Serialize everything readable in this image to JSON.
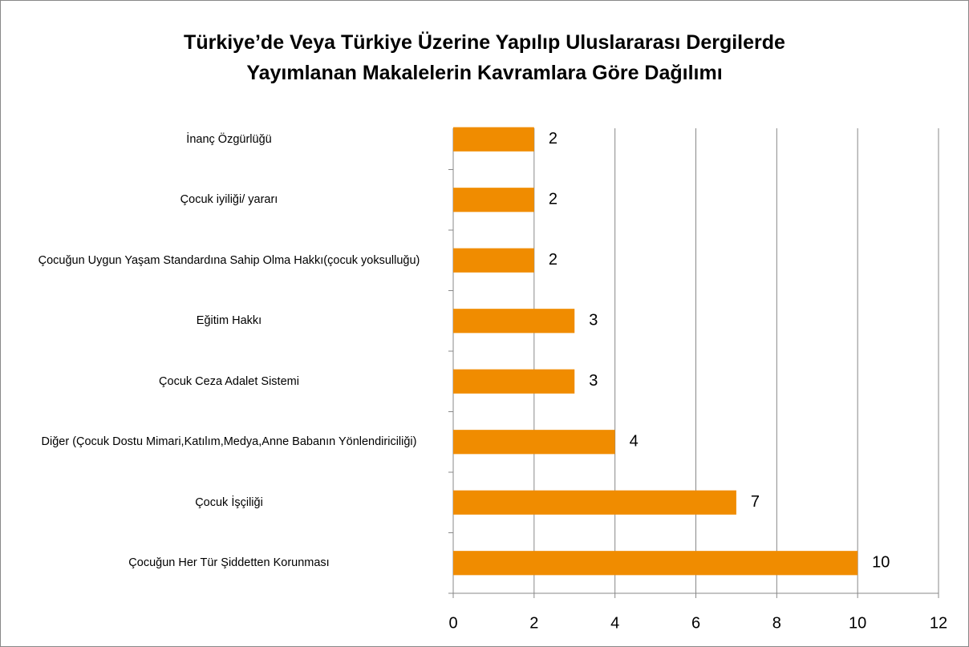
{
  "chart_data": {
    "type": "bar",
    "orientation": "horizontal",
    "title": "Türkiye’de Veya Türkiye Üzerine Yapılıp Uluslararası Dergilerde Yayımlanan Makalelerin Kavramlara Göre Dağılımı",
    "categories": [
      "İnanç Özgürlüğü",
      "Çocuk iyiliği/ yararı",
      "Çocuğun Uygun Yaşam Standardına Sahip Olma Hakkı(çocuk yoksulluğu)",
      "Eğitim Hakkı",
      "Çocuk Ceza Adalet Sistemi",
      "Diğer (Çocuk Dostu Mimari,Katılım,Medya,Anne Babanın Yönlendiriciliği)",
      "Çocuk İşçiliği",
      "Çocuğun Her Tür Şiddetten Korunması"
    ],
    "values": [
      2,
      2,
      2,
      3,
      3,
      4,
      7,
      10
    ],
    "color": "#f08c00",
    "xlim": [
      0,
      12
    ],
    "xticks": [
      0,
      2,
      4,
      6,
      8,
      10,
      12
    ],
    "grid": true
  }
}
